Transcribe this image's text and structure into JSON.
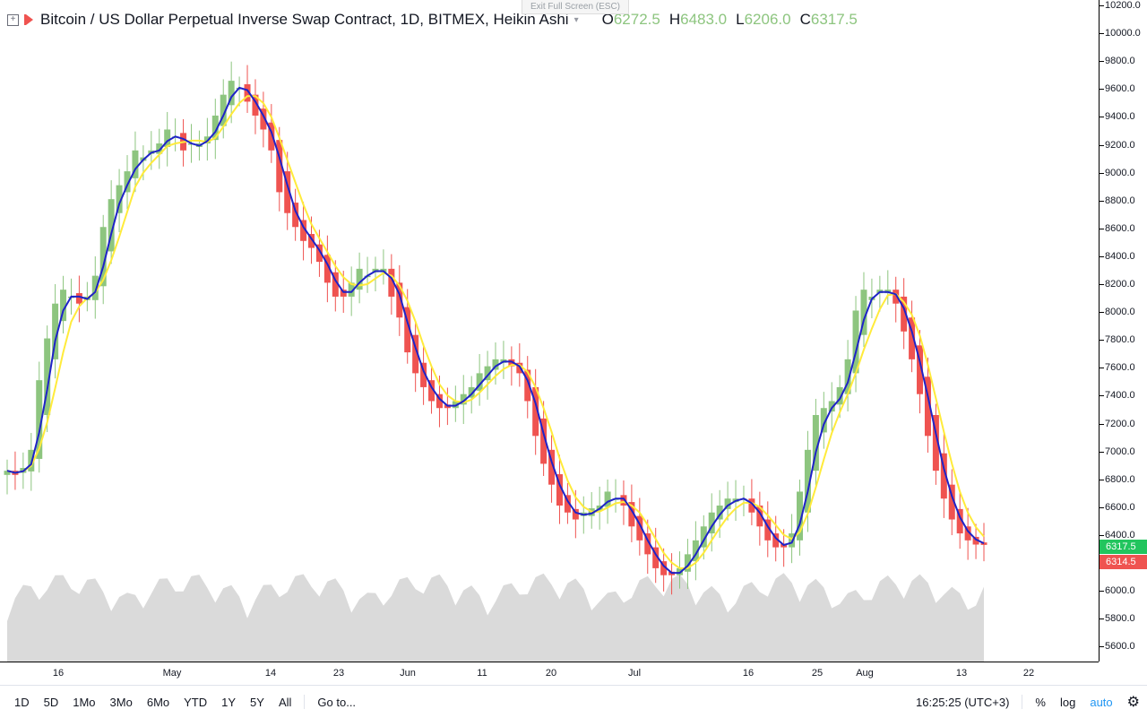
{
  "header": {
    "title": "Bitcoin / US Dollar Perpetual Inverse Swap Contract, 1D, BITMEX, Heikin Ashi",
    "o_label": "O",
    "o_value": "6272.5",
    "h_label": "H",
    "h_value": "6483.0",
    "l_label": "L",
    "l_value": "6206.0",
    "c_label": "C",
    "c_value": "6317.5"
  },
  "exit_fullscreen": "Exit Full Screen (ESC)",
  "price_axis": {
    "ticks": [
      "10200.0",
      "10000.0",
      "9800.0",
      "9600.0",
      "9400.0",
      "9200.0",
      "9000.0",
      "8800.0",
      "8600.0",
      "8400.0",
      "8200.0",
      "8000.0",
      "7800.0",
      "7600.0",
      "7400.0",
      "7200.0",
      "7000.0",
      "6800.0",
      "6600.0",
      "6400.0",
      "6200.0",
      "6000.0",
      "5800.0",
      "5600.0"
    ],
    "current_up": "6317.5",
    "current_down": "6314.5"
  },
  "time_axis": {
    "labels": [
      "16",
      "May",
      "14",
      "23",
      "Jun",
      "11",
      "20",
      "Jul",
      "16",
      "25",
      "Aug",
      "13",
      "22"
    ]
  },
  "toolbar": {
    "ranges": [
      "1D",
      "5D",
      "1Mo",
      "3Mo",
      "6Mo",
      "YTD",
      "1Y",
      "5Y",
      "All"
    ],
    "goto": "Go to...",
    "clock": "16:25:25 (UTC+3)",
    "percent": "%",
    "log": "log",
    "auto": "auto"
  },
  "colors": {
    "up": "#8dc57f",
    "down": "#ef5350",
    "ma_fast": "#1e22c8",
    "ma_slow": "#ffeb3b"
  },
  "chart_data": {
    "type": "candlestick",
    "title": "Bitcoin / US Dollar Perpetual Inverse Swap Contract, 1D, BITMEX, Heikin Ashi",
    "ylim": [
      5480,
      10230
    ],
    "closes": [
      6850,
      6820,
      6870,
      7000,
      7500,
      7800,
      8050,
      8150,
      8100,
      8050,
      8100,
      8250,
      8600,
      8800,
      8900,
      9000,
      9150,
      9100,
      9150,
      9200,
      9300,
      9250,
      9150,
      9200,
      9200,
      9250,
      9400,
      9550,
      9650,
      9600,
      9500,
      9400,
      9300,
      9150,
      8850,
      8700,
      8600,
      8500,
      8450,
      8350,
      8200,
      8100,
      8100,
      8200,
      8300,
      8250,
      8300,
      8300,
      8100,
      7950,
      7700,
      7550,
      7450,
      7350,
      7300,
      7300,
      7350,
      7400,
      7450,
      7550,
      7600,
      7650,
      7650,
      7600,
      7550,
      7350,
      7100,
      6900,
      6750,
      6600,
      6550,
      6500,
      6550,
      6580,
      6600,
      6700,
      6650,
      6600,
      6450,
      6350,
      6250,
      6150,
      6100,
      6100,
      6150,
      6250,
      6350,
      6450,
      6550,
      6600,
      6650,
      6650,
      6650,
      6550,
      6450,
      6350,
      6300,
      6300,
      6400,
      6700,
      7000,
      7250,
      7300,
      7350,
      7450,
      7650,
      8000,
      8150,
      8100,
      8150,
      8150,
      8050,
      7850,
      7650,
      7400,
      7100,
      6850,
      6650,
      6500,
      6400,
      6350,
      6320,
      6317.5
    ],
    "volume_note": "relative volume area drawn behind candles",
    "ma_fast_series": "blue moving average",
    "ma_slow_series": "yellow moving average"
  }
}
